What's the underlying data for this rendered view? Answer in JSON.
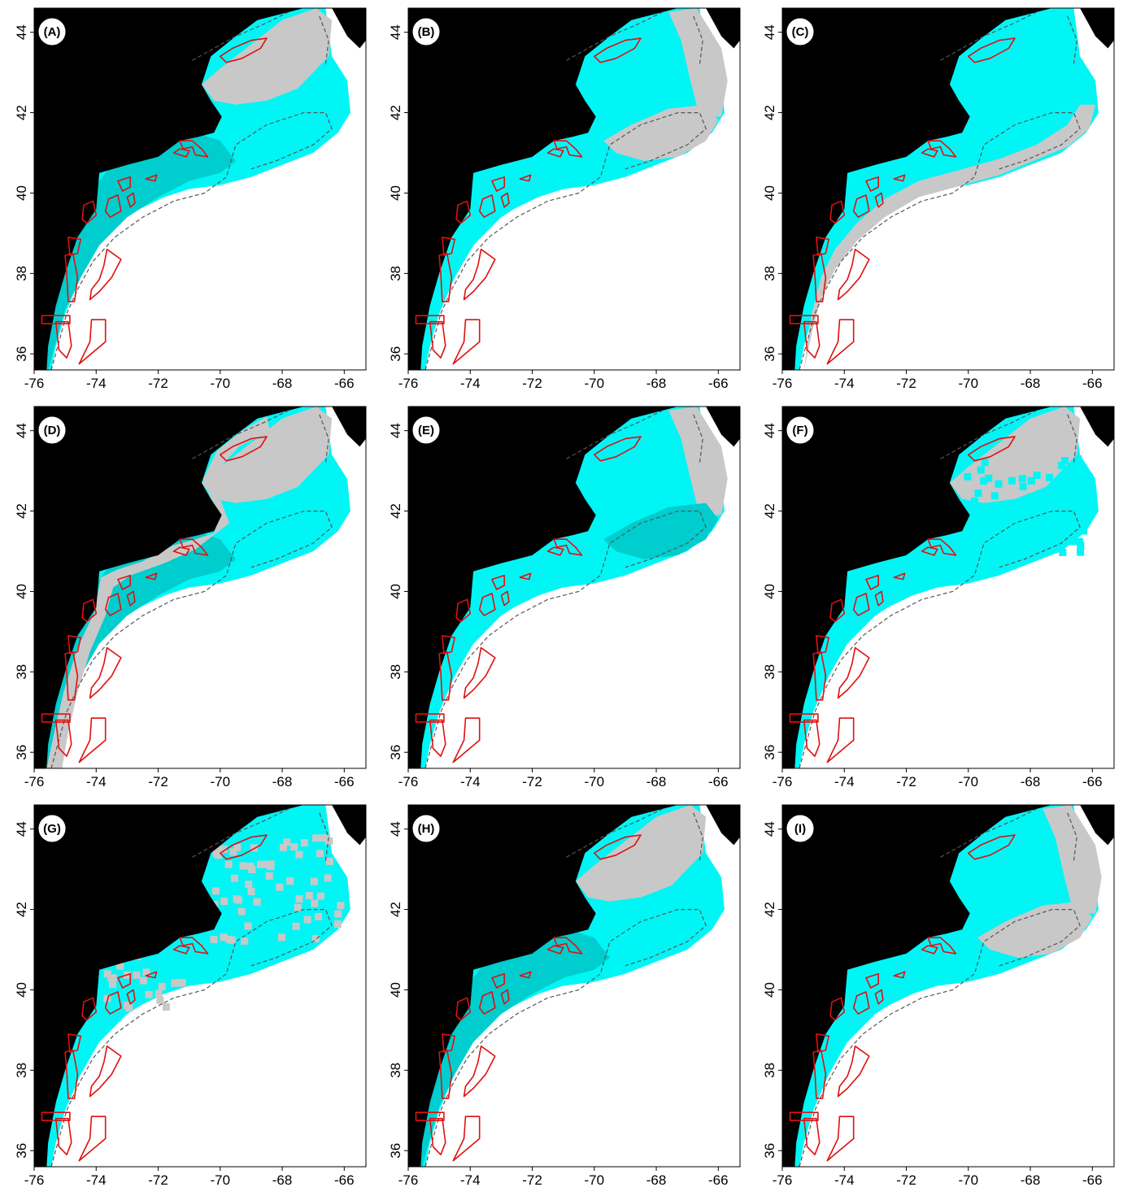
{
  "colors": {
    "land": "#000000",
    "sea_cyan": "#00F5F5",
    "sea_dark_cyan": "#00CDCD",
    "sea_gray": "#C8C8C8",
    "outline_red": "#E01010",
    "contour_gray": "#555555",
    "background": "#FFFFFF"
  },
  "axes": {
    "x_ticks": [
      "-76",
      "-74",
      "-72",
      "-70",
      "-68",
      "-66"
    ],
    "y_ticks": [
      "44",
      "42",
      "40",
      "38",
      "36"
    ]
  },
  "panels": [
    {
      "id": "A",
      "label": "(A)",
      "pattern": "gulf_gray_shelf_dark"
    },
    {
      "id": "B",
      "label": "(B)",
      "pattern": "georges_gray_shelf_cyan"
    },
    {
      "id": "C",
      "label": "(C)",
      "pattern": "slope_gray"
    },
    {
      "id": "D",
      "label": "(D)",
      "pattern": "coast_gray_shelf_dark"
    },
    {
      "id": "E",
      "label": "(E)",
      "pattern": "east_gray_georges_dark"
    },
    {
      "id": "F",
      "label": "(F)",
      "pattern": "gulf_speckled"
    },
    {
      "id": "G",
      "label": "(G)",
      "pattern": "mixed_speckled"
    },
    {
      "id": "H",
      "label": "(H)",
      "pattern": "gulf_gray_shelf_dark"
    },
    {
      "id": "I",
      "label": "(I)",
      "pattern": "georges_gray_shelf_cyan"
    }
  ]
}
